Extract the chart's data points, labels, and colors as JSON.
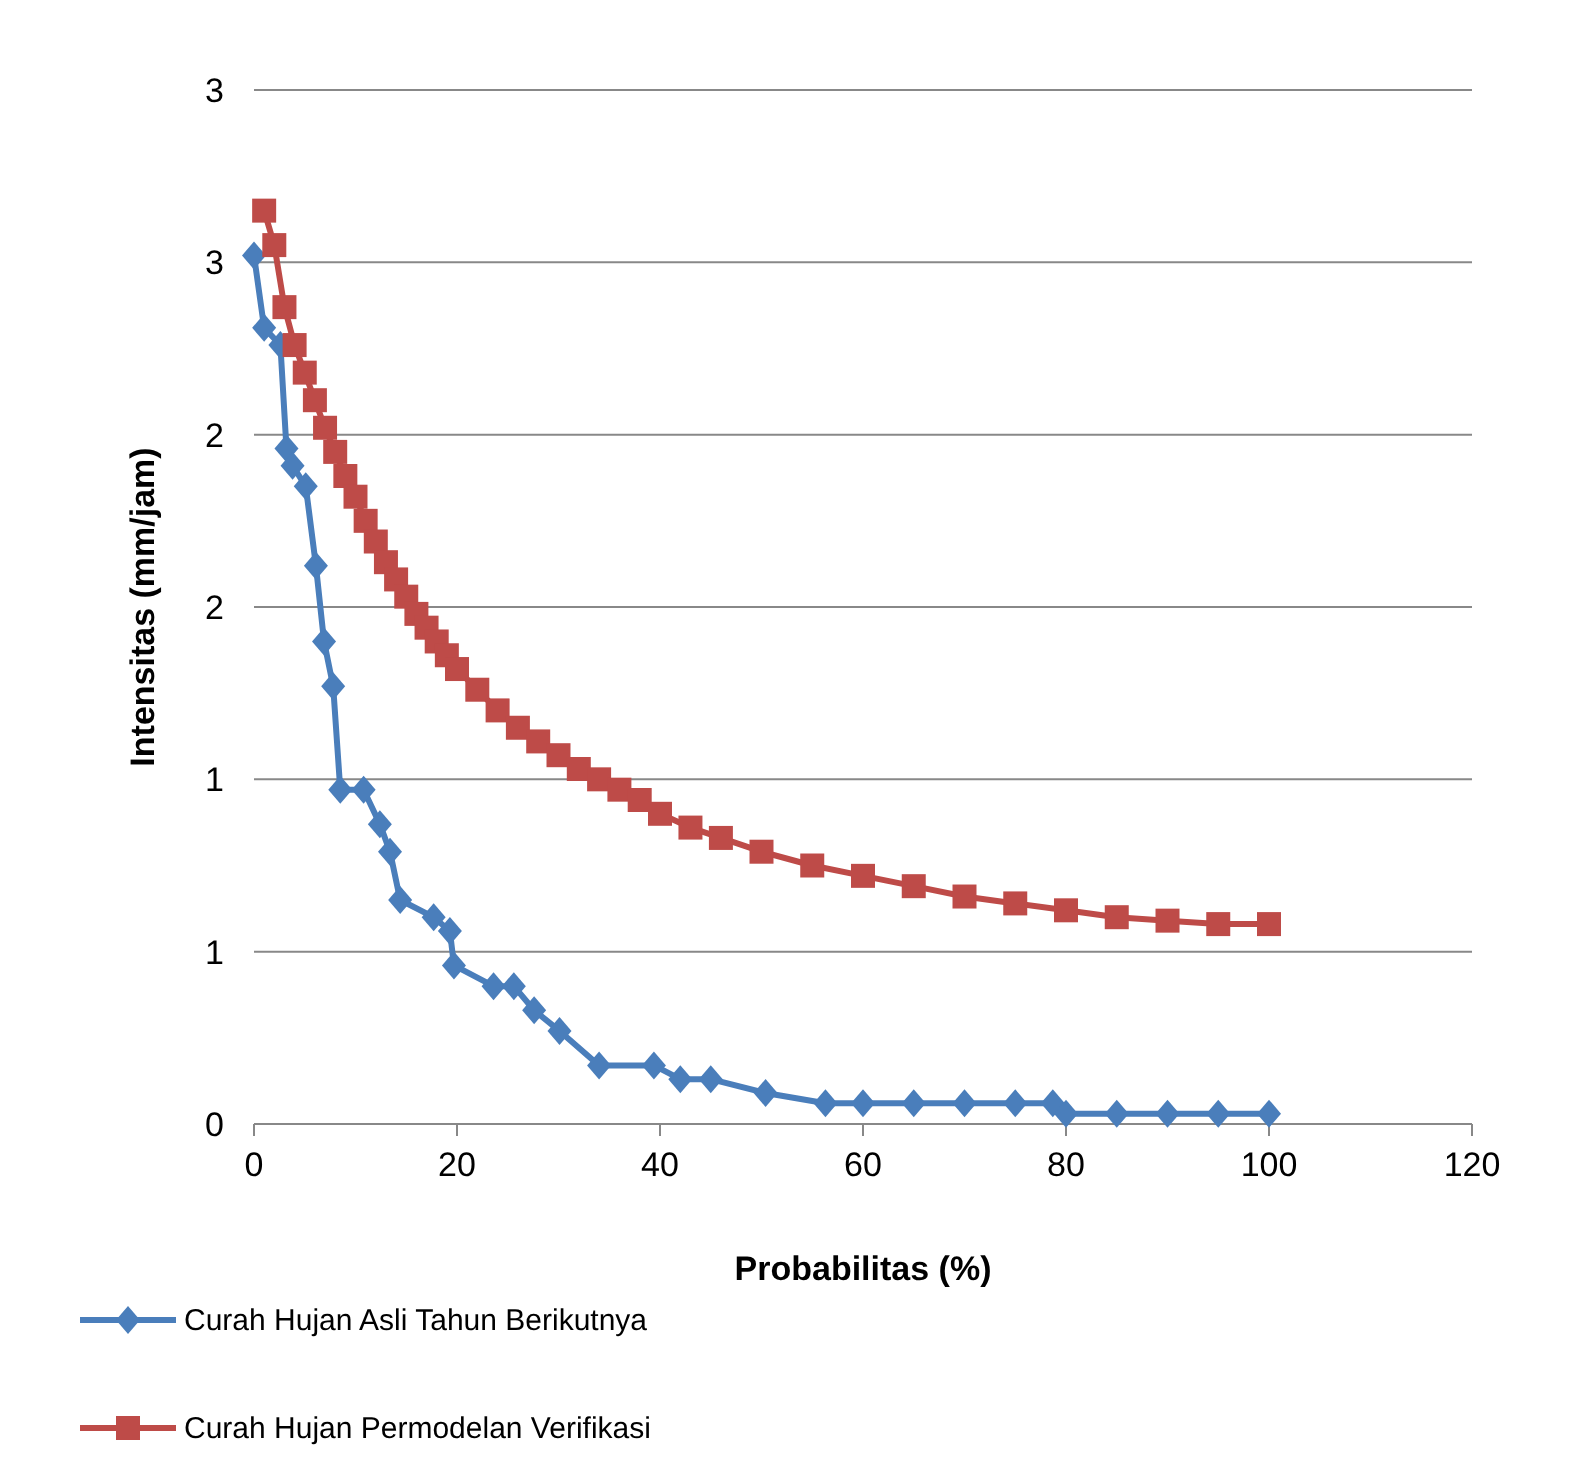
{
  "chart_data": {
    "type": "line",
    "xlabel": "Probabilitas (%)",
    "ylabel": "Intensitas (mm/jam)",
    "xlim": [
      0,
      120
    ],
    "xticks": [
      0,
      20,
      40,
      60,
      80,
      100,
      120
    ],
    "ylim": [
      0,
      3
    ],
    "yticks": [
      0,
      {
        "value": 0.5,
        "label": "1"
      },
      1,
      {
        "value": 1.5,
        "label": "2"
      },
      2,
      {
        "value": 2.5,
        "label": "3"
      },
      3
    ],
    "grid": "y",
    "legend": "bottom",
    "series": [
      {
        "name": "Curah Hujan Asli Tahun Berikutnya",
        "color": "#4a7ebb",
        "marker": "diamond",
        "x": [
          0,
          1,
          2.6,
          3.2,
          3.8,
          5.1,
          6.1,
          6.9,
          7.8,
          8.5,
          10.8,
          12.4,
          13.4,
          14.4,
          17.7,
          19.3,
          19.7,
          23.6,
          25.6,
          27.6,
          30.1,
          34,
          39.4,
          42,
          45,
          50.4,
          56.3,
          60,
          65,
          70,
          75,
          78.7,
          80,
          85,
          90,
          95,
          100
        ],
        "values": [
          2.52,
          2.31,
          2.26,
          1.96,
          1.91,
          1.85,
          1.62,
          1.4,
          1.27,
          0.97,
          0.97,
          0.87,
          0.79,
          0.65,
          0.6,
          0.56,
          0.46,
          0.4,
          0.4,
          0.33,
          0.27,
          0.17,
          0.17,
          0.13,
          0.13,
          0.09,
          0.06,
          0.06,
          0.06,
          0.06,
          0.06,
          0.06,
          0.03,
          0.03,
          0.03,
          0.03,
          0.03
        ]
      },
      {
        "name": "Curah Hujan Permodelan Verifikasi",
        "color": "#be4b48",
        "marker": "square",
        "x": [
          1,
          2,
          3,
          4,
          5,
          6,
          7,
          8,
          9,
          10,
          11,
          12,
          13,
          14,
          15,
          16,
          17,
          18,
          19,
          20,
          22,
          24,
          26,
          28,
          30,
          32,
          34,
          36,
          38,
          40,
          43,
          46,
          50,
          55,
          60,
          65,
          70,
          75,
          80,
          85,
          90,
          95,
          100
        ],
        "values": [
          2.65,
          2.55,
          2.37,
          2.26,
          2.18,
          2.1,
          2.02,
          1.95,
          1.88,
          1.82,
          1.75,
          1.69,
          1.63,
          1.58,
          1.53,
          1.48,
          1.44,
          1.4,
          1.36,
          1.32,
          1.26,
          1.2,
          1.15,
          1.11,
          1.07,
          1.03,
          1.0,
          0.97,
          0.94,
          0.9,
          0.86,
          0.83,
          0.79,
          0.75,
          0.72,
          0.69,
          0.66,
          0.64,
          0.62,
          0.6,
          0.59,
          0.58,
          0.58
        ]
      }
    ]
  }
}
